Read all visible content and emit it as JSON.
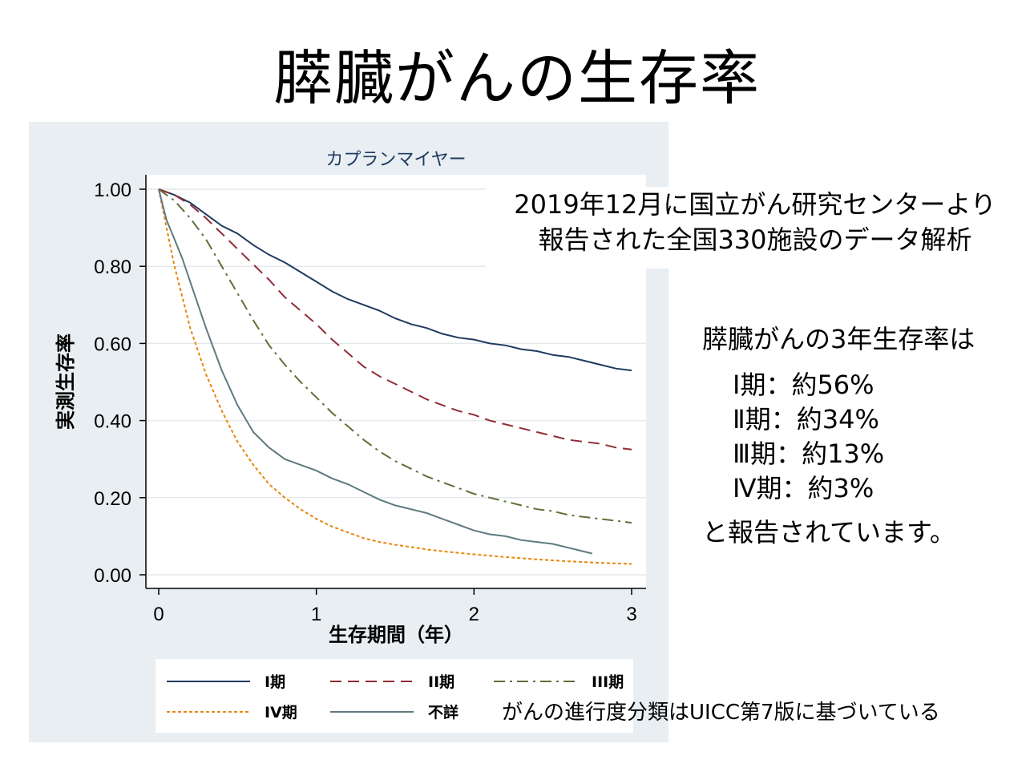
{
  "title": "膵臓がんの生存率",
  "source_note": {
    "line1": "2019年12月に国立がん研究センターより",
    "line2": "報告された全国330施設のデータ解析"
  },
  "summary": {
    "heading": "膵臓がんの3年生存率は",
    "stages": [
      {
        "label": "Ⅰ期：約56%"
      },
      {
        "label": "Ⅱ期：約34%"
      },
      {
        "label": "Ⅲ期：約13%"
      },
      {
        "label": "Ⅳ期：約3%"
      }
    ],
    "closing": "と報告されています。"
  },
  "footnote": "がんの進行度分類はUICC第7版に基づいている",
  "colors": {
    "panel_bg": "#e8eef2",
    "stage1": "#1f3a60",
    "stage2": "#8f2c35",
    "stage3": "#5d7039",
    "stage4": "#e8850c",
    "unknown": "#5f7a80"
  },
  "chart_data": {
    "type": "line",
    "title": "カプランマイヤー",
    "xlabel": "生存期間（年）",
    "ylabel": "実測生存率",
    "xlim": [
      0,
      3
    ],
    "ylim": [
      0,
      1
    ],
    "x_ticks": [
      "0",
      "1",
      "2",
      "3"
    ],
    "y_ticks": [
      "0.00",
      "0.20",
      "0.40",
      "0.60",
      "0.80",
      "1.00"
    ],
    "grid": true,
    "legend_position": "bottom",
    "series": [
      {
        "name": "I期",
        "style": "solid",
        "color": "#1f3a60",
        "x": [
          0,
          0.1,
          0.2,
          0.3,
          0.4,
          0.5,
          0.6,
          0.7,
          0.8,
          0.9,
          1.0,
          1.1,
          1.2,
          1.3,
          1.4,
          1.5,
          1.6,
          1.7,
          1.8,
          1.9,
          2.0,
          2.1,
          2.2,
          2.3,
          2.4,
          2.5,
          2.6,
          2.7,
          2.8,
          2.9,
          3.0
        ],
        "y": [
          1.0,
          0.985,
          0.965,
          0.935,
          0.905,
          0.885,
          0.855,
          0.83,
          0.81,
          0.785,
          0.76,
          0.735,
          0.715,
          0.7,
          0.685,
          0.665,
          0.65,
          0.64,
          0.625,
          0.615,
          0.61,
          0.6,
          0.595,
          0.585,
          0.58,
          0.57,
          0.565,
          0.555,
          0.545,
          0.535,
          0.53
        ]
      },
      {
        "name": "II期",
        "style": "dashed",
        "color": "#8f2c35",
        "x": [
          0,
          0.1,
          0.2,
          0.3,
          0.4,
          0.5,
          0.6,
          0.7,
          0.8,
          0.9,
          1.0,
          1.1,
          1.2,
          1.3,
          1.4,
          1.5,
          1.6,
          1.7,
          1.8,
          1.9,
          2.0,
          2.1,
          2.2,
          2.3,
          2.4,
          2.5,
          2.6,
          2.7,
          2.8,
          2.9,
          3.0
        ],
        "y": [
          1.0,
          0.985,
          0.96,
          0.925,
          0.885,
          0.845,
          0.805,
          0.765,
          0.72,
          0.685,
          0.65,
          0.61,
          0.575,
          0.54,
          0.515,
          0.495,
          0.475,
          0.455,
          0.44,
          0.425,
          0.415,
          0.4,
          0.39,
          0.38,
          0.37,
          0.36,
          0.35,
          0.345,
          0.34,
          0.33,
          0.325
        ]
      },
      {
        "name": "III期",
        "style": "dashdot",
        "color": "#5d7039",
        "x": [
          0,
          0.1,
          0.2,
          0.3,
          0.4,
          0.5,
          0.6,
          0.7,
          0.8,
          0.9,
          1.0,
          1.1,
          1.2,
          1.3,
          1.4,
          1.5,
          1.6,
          1.7,
          1.8,
          1.9,
          2.0,
          2.1,
          2.2,
          2.3,
          2.4,
          2.5,
          2.6,
          2.7,
          2.8,
          2.9,
          3.0
        ],
        "y": [
          1.0,
          0.97,
          0.925,
          0.87,
          0.8,
          0.73,
          0.66,
          0.595,
          0.545,
          0.5,
          0.46,
          0.42,
          0.385,
          0.35,
          0.32,
          0.295,
          0.275,
          0.255,
          0.24,
          0.225,
          0.21,
          0.2,
          0.19,
          0.18,
          0.17,
          0.165,
          0.155,
          0.15,
          0.145,
          0.14,
          0.135
        ]
      },
      {
        "name": "IV期",
        "style": "dotted",
        "color": "#e8850c",
        "x": [
          0,
          0.05,
          0.1,
          0.15,
          0.2,
          0.3,
          0.4,
          0.5,
          0.6,
          0.7,
          0.8,
          0.9,
          1.0,
          1.1,
          1.2,
          1.3,
          1.4,
          1.5,
          1.6,
          1.7,
          1.8,
          1.9,
          2.0,
          2.2,
          2.4,
          2.6,
          2.8,
          3.0
        ],
        "y": [
          1.0,
          0.9,
          0.8,
          0.72,
          0.64,
          0.52,
          0.425,
          0.345,
          0.285,
          0.235,
          0.2,
          0.17,
          0.145,
          0.125,
          0.11,
          0.095,
          0.085,
          0.078,
          0.072,
          0.066,
          0.061,
          0.057,
          0.053,
          0.046,
          0.04,
          0.035,
          0.031,
          0.028
        ]
      },
      {
        "name": "不詳",
        "style": "solid",
        "color": "#5f7a80",
        "x": [
          0,
          0.05,
          0.1,
          0.15,
          0.2,
          0.3,
          0.4,
          0.5,
          0.6,
          0.7,
          0.8,
          0.9,
          1.0,
          1.1,
          1.2,
          1.3,
          1.4,
          1.5,
          1.6,
          1.7,
          1.8,
          1.9,
          2.0,
          2.1,
          2.2,
          2.3,
          2.4,
          2.5,
          2.6,
          2.7,
          2.75
        ],
        "y": [
          1.0,
          0.92,
          0.87,
          0.82,
          0.76,
          0.64,
          0.53,
          0.44,
          0.37,
          0.33,
          0.3,
          0.285,
          0.27,
          0.25,
          0.235,
          0.215,
          0.195,
          0.18,
          0.17,
          0.16,
          0.145,
          0.13,
          0.115,
          0.105,
          0.1,
          0.09,
          0.085,
          0.08,
          0.07,
          0.06,
          0.055
        ]
      }
    ]
  }
}
